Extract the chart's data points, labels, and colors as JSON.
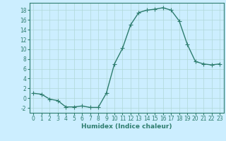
{
  "x": [
    0,
    1,
    2,
    3,
    4,
    5,
    6,
    7,
    8,
    9,
    10,
    11,
    12,
    13,
    14,
    15,
    16,
    17,
    18,
    19,
    20,
    21,
    22,
    23
  ],
  "y": [
    1,
    0.8,
    -0.2,
    -0.5,
    -1.8,
    -1.8,
    -1.6,
    -1.9,
    -1.9,
    1,
    7,
    10.2,
    15,
    17.5,
    18,
    18.2,
    18.5,
    18,
    15.8,
    11,
    7.5,
    7,
    6.8,
    7
  ],
  "line_color": "#2e7d6e",
  "marker": "+",
  "bg_color": "#cceeff",
  "grid_color": "#b0d8d8",
  "xlabel": "Humidex (Indice chaleur)",
  "xlim": [
    -0.5,
    23.5
  ],
  "ylim": [
    -3,
    19.5
  ],
  "yticks": [
    -2,
    0,
    2,
    4,
    6,
    8,
    10,
    12,
    14,
    16,
    18
  ],
  "xticks": [
    0,
    1,
    2,
    3,
    4,
    5,
    6,
    7,
    8,
    9,
    10,
    11,
    12,
    13,
    14,
    15,
    16,
    17,
    18,
    19,
    20,
    21,
    22,
    23
  ],
  "xlabel_fontsize": 6.5,
  "tick_fontsize": 5.5,
  "line_width": 1.0,
  "marker_size": 4,
  "marker_ew": 0.8
}
